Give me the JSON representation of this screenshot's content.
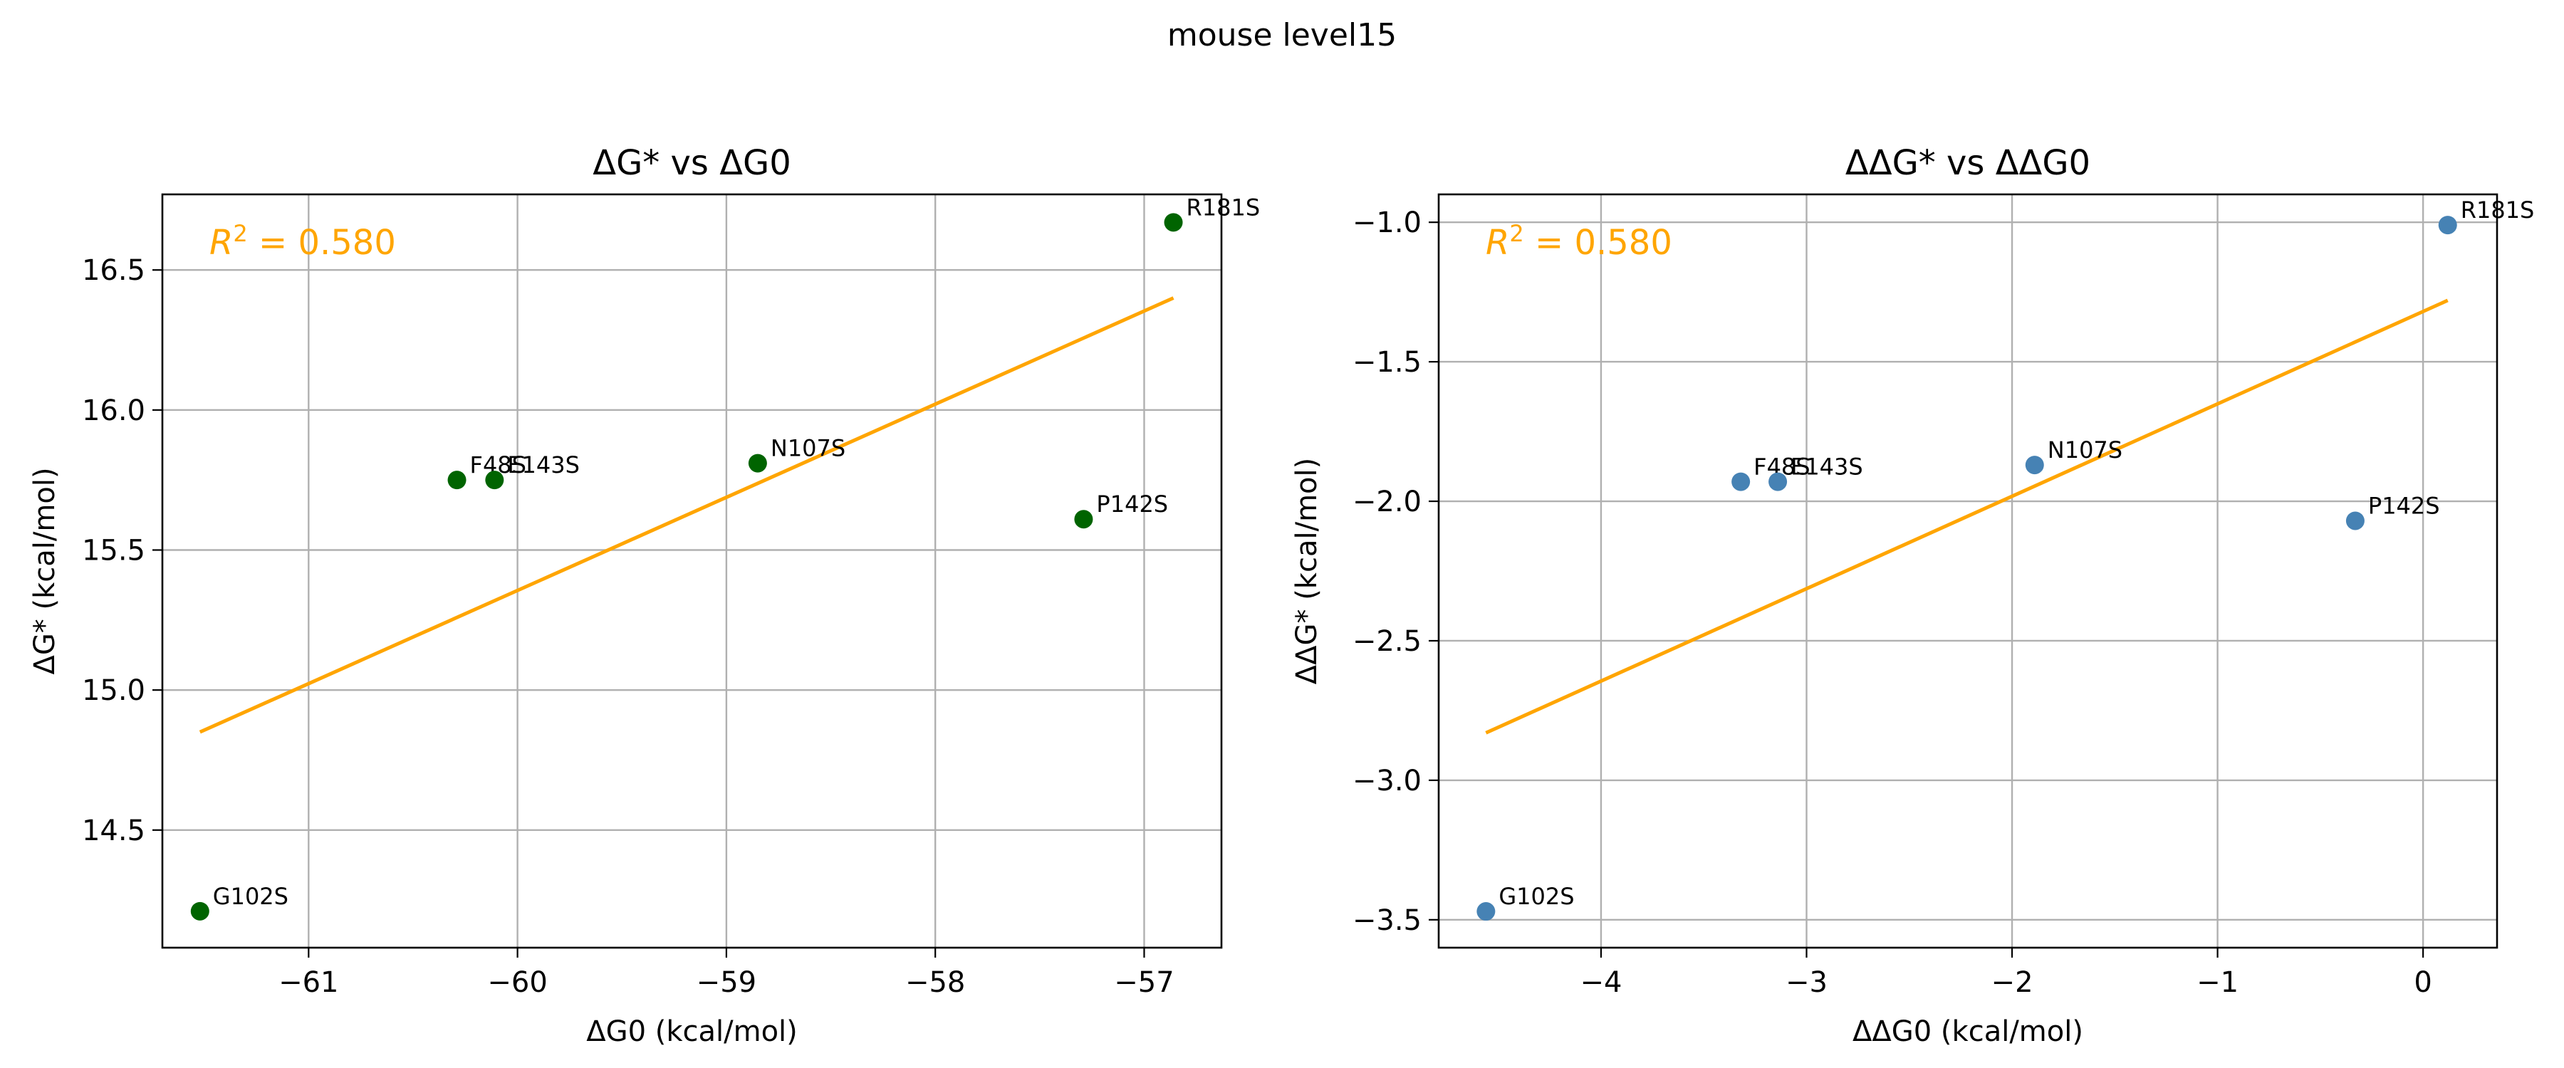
{
  "figure": {
    "suptitle": "mouse level15"
  },
  "colors": {
    "panel_1_points": "#006400",
    "panel_2_points": "#4682b4",
    "fit_line": "#ffa500",
    "r2_text": "#ffa500",
    "grid": "#b0b0b0"
  },
  "chart_data": [
    {
      "type": "scatter",
      "title": "ΔG* vs ΔG0",
      "xlabel": "ΔG0 (kcal/mol)",
      "ylabel": "ΔG* (kcal/mol)",
      "xlim": [
        -61.7,
        -56.63
      ],
      "ylim": [
        14.08,
        16.77
      ],
      "xticks": [
        -61,
        -60,
        -59,
        -58,
        -57
      ],
      "xtick_labels": [
        "−61",
        "−60",
        "−59",
        "−58",
        "−57"
      ],
      "yticks": [
        14.5,
        15.0,
        15.5,
        16.0,
        16.5
      ],
      "ytick_labels": [
        "14.5",
        "15.0",
        "15.5",
        "16.0",
        "16.5"
      ],
      "grid": true,
      "annotation": {
        "r2_prefix": "R",
        "r2_exp": "2",
        "r2_value": " = 0.580"
      },
      "points": [
        {
          "label": "G102S",
          "x": -61.52,
          "y": 14.21
        },
        {
          "label": "F48S",
          "x": -60.29,
          "y": 15.75
        },
        {
          "label": "E143S",
          "x": -60.11,
          "y": 15.75
        },
        {
          "label": "N107S",
          "x": -58.85,
          "y": 15.81
        },
        {
          "label": "P142S",
          "x": -57.29,
          "y": 15.61
        },
        {
          "label": "R181S",
          "x": -56.86,
          "y": 16.67
        }
      ],
      "fit": {
        "x": [
          -61.52,
          -56.86
        ],
        "y": [
          14.85,
          16.4
        ]
      }
    },
    {
      "type": "scatter",
      "title": "ΔΔG* vs ΔΔG0",
      "xlabel": "ΔΔG0 (kcal/mol)",
      "ylabel": "ΔΔG* (kcal/mol)",
      "xlim": [
        -4.79,
        0.36
      ],
      "ylim": [
        -3.6,
        -0.9
      ],
      "xticks": [
        -4,
        -3,
        -2,
        -1,
        0
      ],
      "xtick_labels": [
        "−4",
        "−3",
        "−2",
        "−1",
        "0"
      ],
      "yticks": [
        -3.5,
        -3.0,
        -2.5,
        -2.0,
        -1.5,
        -1.0
      ],
      "ytick_labels": [
        "−3.5",
        "−3.0",
        "−2.5",
        "−2.0",
        "−1.5",
        "−1.0"
      ],
      "grid": true,
      "annotation": {
        "r2_prefix": "R",
        "r2_exp": "2",
        "r2_value": " = 0.580"
      },
      "points": [
        {
          "label": "G102S",
          "x": -4.56,
          "y": -3.47
        },
        {
          "label": "F48S",
          "x": -3.32,
          "y": -1.93
        },
        {
          "label": "E143S",
          "x": -3.14,
          "y": -1.93
        },
        {
          "label": "N107S",
          "x": -1.89,
          "y": -1.87
        },
        {
          "label": "P142S",
          "x": -0.33,
          "y": -2.07
        },
        {
          "label": "R181S",
          "x": 0.12,
          "y": -1.01
        }
      ],
      "fit": {
        "x": [
          -4.56,
          0.12
        ],
        "y": [
          -2.83,
          -1.28
        ]
      }
    }
  ]
}
